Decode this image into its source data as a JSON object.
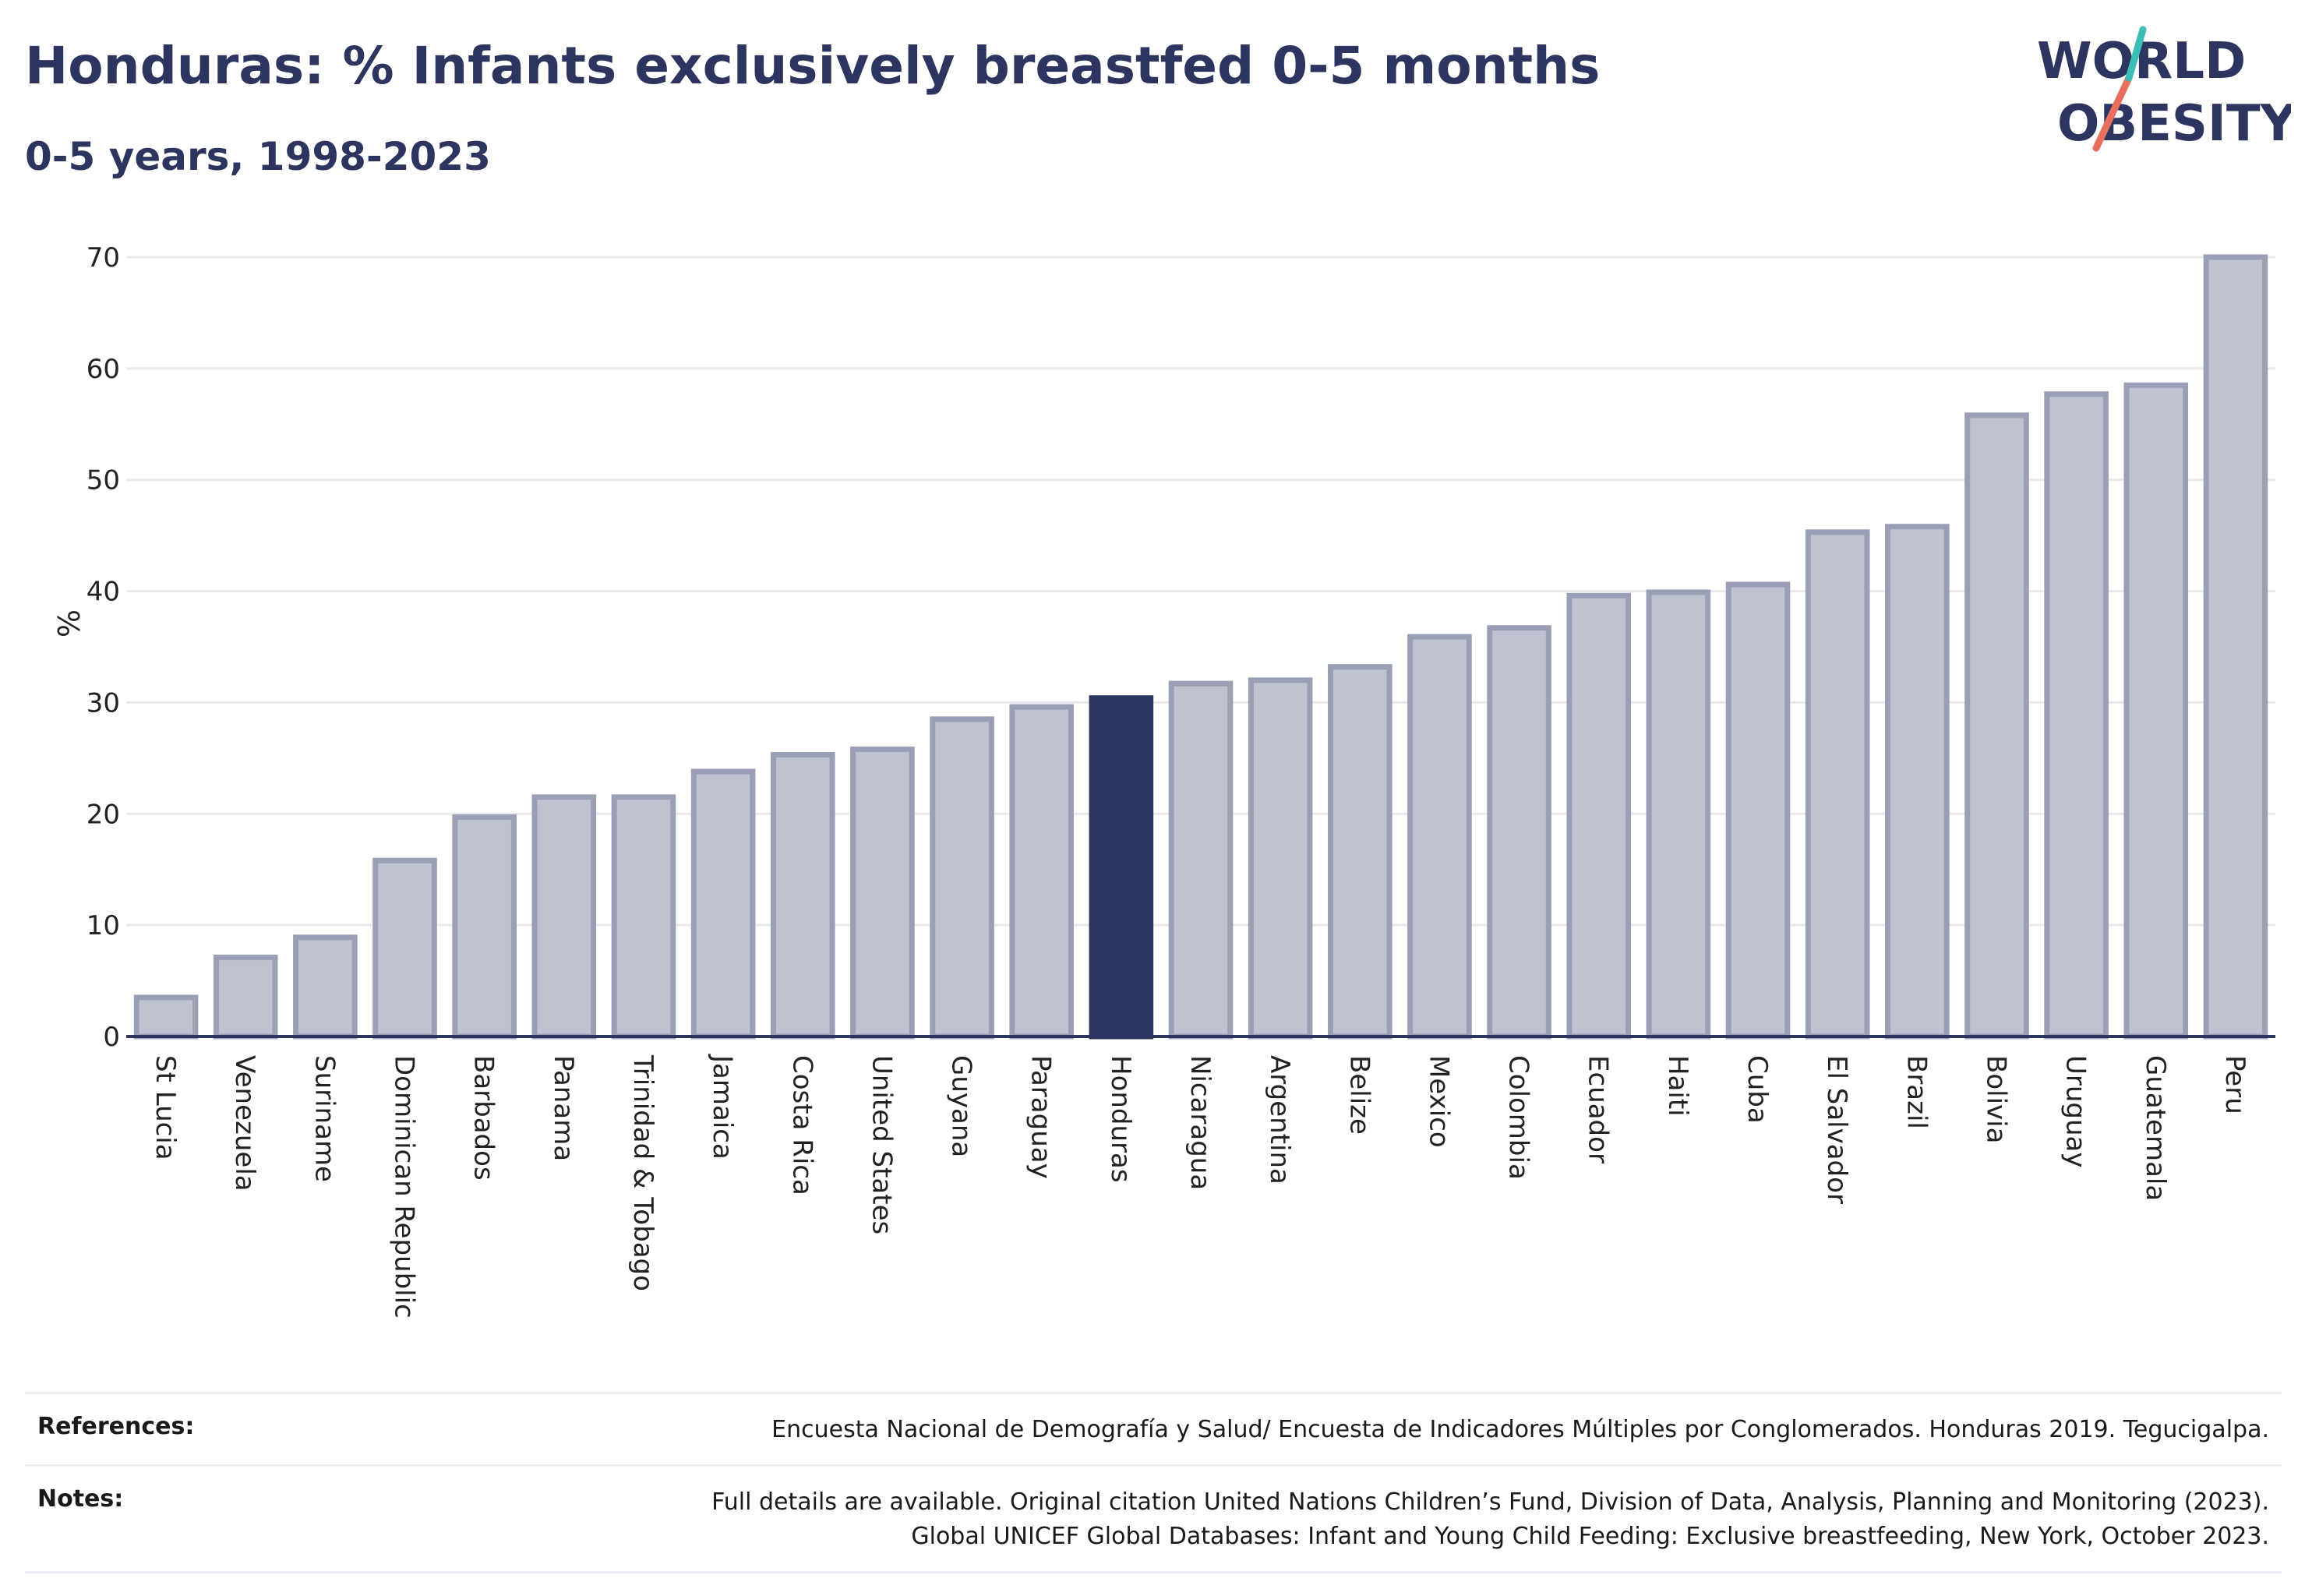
{
  "header": {
    "title": "Honduras: % Infants exclusively breastfed 0-5 months",
    "subtitle": "0-5 years, 1998-2023"
  },
  "logo": {
    "line1": "WORLD",
    "line2": "OBESITY"
  },
  "colors": {
    "highlight": "#2b3560",
    "bar_fill": "#bfc2cf",
    "bar_edge": "#9a9fb6",
    "grid": "#e8e9ee",
    "logo_teal": "#3bbfb5",
    "logo_coral": "#e86f5d"
  },
  "chart_data": {
    "type": "bar",
    "ylabel": "%",
    "ylim": [
      0,
      70
    ],
    "yticks": [
      0,
      10,
      20,
      30,
      40,
      50,
      60,
      70
    ],
    "grid": true,
    "highlight": "Honduras",
    "categories": [
      "St Lucia",
      "Venezuela",
      "Suriname",
      "Dominican Republic",
      "Barbados",
      "Panama",
      "Trinidad & Tobago",
      "Jamaica",
      "Costa Rica",
      "United States",
      "Guyana",
      "Paraguay",
      "Honduras",
      "Nicaragua",
      "Argentina",
      "Belize",
      "Mexico",
      "Colombia",
      "Ecuador",
      "Haiti",
      "Cuba",
      "El Salvador",
      "Brazil",
      "Bolivia",
      "Uruguay",
      "Guatemala",
      "Peru"
    ],
    "values": [
      3.5,
      7.1,
      8.9,
      15.8,
      19.7,
      21.5,
      21.5,
      23.8,
      25.3,
      25.8,
      28.5,
      29.6,
      30.4,
      31.7,
      32.0,
      33.2,
      35.9,
      36.7,
      39.6,
      39.9,
      40.6,
      45.3,
      45.8,
      55.8,
      57.7,
      58.5,
      70.0
    ]
  },
  "footer": {
    "references_label": "References:",
    "references_text": "Encuesta Nacional de Demografía y Salud/ Encuesta de Indicadores Múltiples por Conglomerados. Honduras 2019. Tegucigalpa.",
    "notes_label": "Notes:",
    "notes_line1": "Full details are available. Original citation United Nations Children’s Fund, Division of Data, Analysis, Planning and Monitoring (2023).",
    "notes_line2": "Global UNICEF Global Databases: Infant and Young Child Feeding: Exclusive breastfeeding, New York, October 2023."
  }
}
